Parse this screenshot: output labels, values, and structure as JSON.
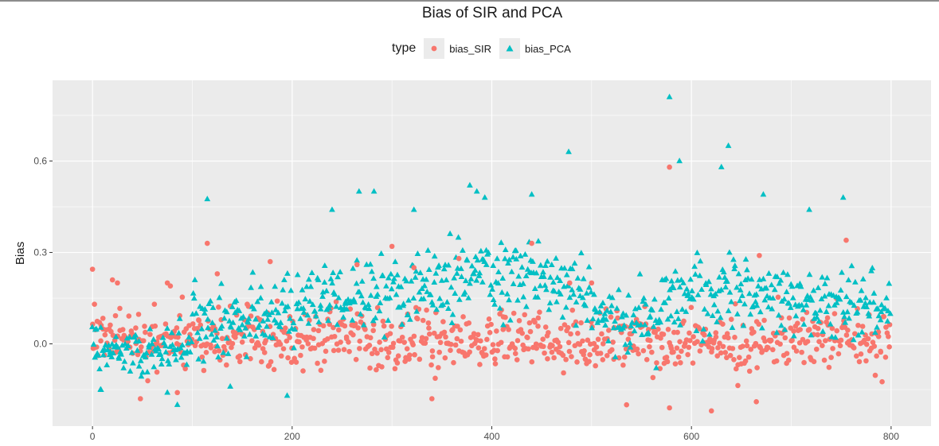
{
  "chart_data": {
    "type": "scatter",
    "title": "Bias of SIR and PCA",
    "xlabel": "",
    "ylabel": "Bias",
    "xlim": [
      -40,
      840
    ],
    "ylim": [
      -0.27,
      0.865
    ],
    "x_ticks": [
      0,
      200,
      400,
      600,
      800
    ],
    "x_tick_labels": [
      "0",
      "200",
      "400",
      "600",
      "800"
    ],
    "x_minor": [
      100,
      300,
      500,
      700
    ],
    "y_ticks": [
      0.0,
      0.3,
      0.6
    ],
    "y_tick_labels": [
      "0.0",
      "0.3",
      "0.6"
    ],
    "y_minor": [
      -0.15,
      0.15,
      0.45,
      0.75
    ],
    "legend": {
      "title": "type",
      "position": "top",
      "entries": [
        "bias_SIR",
        "bias_PCA"
      ]
    },
    "colors": {
      "bias_SIR": "#F8766D",
      "bias_PCA": "#00BFC4",
      "panel": "#EBEBEB",
      "grid": "#FFFFFF"
    },
    "series": [
      {
        "name": "bias_SIR",
        "shape": "circle",
        "n": 800,
        "highlights": [
          [
            0,
            0.245
          ],
          [
            2,
            0.13
          ],
          [
            20,
            0.21
          ],
          [
            25,
            0.2
          ],
          [
            62,
            0.13
          ],
          [
            75,
            0.2
          ],
          [
            78,
            0.19
          ],
          [
            115,
            0.33
          ],
          [
            125,
            0.23
          ],
          [
            155,
            0.13
          ],
          [
            178,
            0.27
          ],
          [
            265,
            0.26
          ],
          [
            300,
            0.32
          ],
          [
            322,
            0.25
          ],
          [
            367,
            0.28
          ],
          [
            440,
            0.33
          ],
          [
            478,
            0.2
          ],
          [
            500,
            0.2
          ],
          [
            578,
            0.58
          ],
          [
            668,
            0.29
          ],
          [
            755,
            0.34
          ],
          [
            578,
            -0.21
          ],
          [
            620,
            -0.22
          ],
          [
            535,
            -0.2
          ],
          [
            665,
            -0.19
          ],
          [
            340,
            -0.18
          ],
          [
            48,
            -0.18
          ],
          [
            85,
            -0.16
          ]
        ]
      },
      {
        "name": "bias_PCA",
        "shape": "triangle",
        "n": 800,
        "highlights": [
          [
            115,
            0.475
          ],
          [
            240,
            0.44
          ],
          [
            267,
            0.5
          ],
          [
            282,
            0.5
          ],
          [
            322,
            0.44
          ],
          [
            378,
            0.52
          ],
          [
            385,
            0.5
          ],
          [
            393,
            0.48
          ],
          [
            440,
            0.49
          ],
          [
            477,
            0.63
          ],
          [
            578,
            0.81
          ],
          [
            588,
            0.6
          ],
          [
            630,
            0.58
          ],
          [
            637,
            0.65
          ],
          [
            672,
            0.49
          ],
          [
            718,
            0.44
          ],
          [
            752,
            0.48
          ],
          [
            195,
            -0.17
          ],
          [
            85,
            -0.2
          ],
          [
            8,
            -0.15
          ],
          [
            75,
            -0.16
          ],
          [
            138,
            -0.14
          ]
        ]
      }
    ]
  }
}
